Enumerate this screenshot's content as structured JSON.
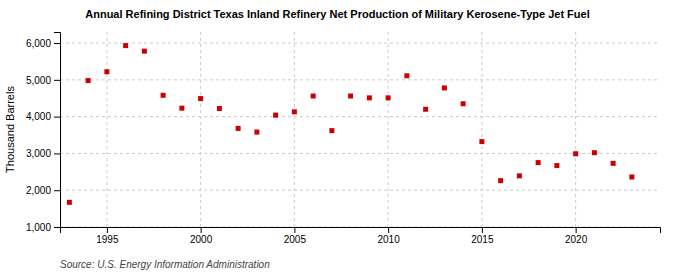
{
  "chart_data": {
    "type": "scatter",
    "title": "Annual Refining District Texas Inland Refinery Net Production of Military Kerosene-Type Jet Fuel",
    "ylabel": "Thousand Barrels",
    "source": "Source: U.S. Energy Information Administration",
    "color": "#cc0000",
    "marker": "square",
    "grid": true,
    "x": [
      1993,
      1994,
      1995,
      1996,
      1997,
      1998,
      1999,
      2000,
      2001,
      2002,
      2003,
      2004,
      2005,
      2006,
      2007,
      2008,
      2009,
      2010,
      2011,
      2012,
      2013,
      2014,
      2015,
      2016,
      2017,
      2018,
      2019,
      2020,
      2021,
      2022,
      2023
    ],
    "values": [
      1670,
      4980,
      5220,
      5930,
      5780,
      4580,
      4230,
      4490,
      4220,
      3680,
      3580,
      4040,
      4130,
      4560,
      3620,
      4560,
      4510,
      4510,
      5110,
      4200,
      4780,
      4350,
      3320,
      2260,
      2390,
      2750,
      2670,
      2990,
      3020,
      2730,
      2360
    ],
    "xlim": [
      1992.5,
      2024.5
    ],
    "xticks": [
      1995,
      2000,
      2005,
      2010,
      2015,
      2020
    ],
    "ylim": [
      1000,
      6300
    ],
    "yticks": [
      {
        "value": 1000,
        "label": "1,000"
      },
      {
        "value": 2000,
        "label": "2,000"
      },
      {
        "value": 3000,
        "label": "3,000"
      },
      {
        "value": 4000,
        "label": "4,000"
      },
      {
        "value": 5000,
        "label": "5,000"
      },
      {
        "value": 6000,
        "label": "6,000"
      }
    ]
  }
}
